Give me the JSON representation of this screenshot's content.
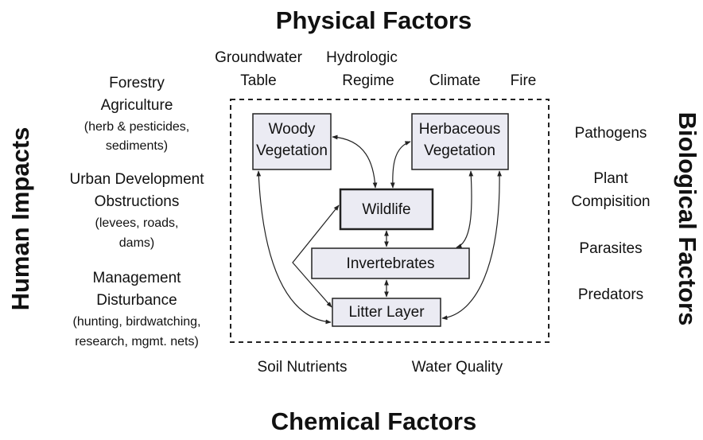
{
  "titles": {
    "top": "Physical Factors",
    "bottom": "Chemical Factors",
    "left": "Human Impacts",
    "right": "Biological Factors"
  },
  "physical_factors": [
    [
      "Groundwater",
      "Table"
    ],
    [
      "Hydrologic",
      "Regime"
    ],
    [
      "Climate"
    ],
    [
      "Fire"
    ]
  ],
  "human_impacts": [
    [
      "Forestry",
      "Agriculture",
      "(herb & pesticides,",
      "sediments)"
    ],
    [
      "Urban Development",
      "Obstructions",
      "(levees, roads,",
      "dams)"
    ],
    [
      "Management",
      "Disturbance",
      "(hunting, birdwatching,",
      "research, mgmt. nets)"
    ]
  ],
  "biological_factors": [
    [
      "Pathogens"
    ],
    [
      "Plant",
      "Compisition"
    ],
    [
      "Parasites"
    ],
    [
      "Predators"
    ]
  ],
  "chemical_factors": [
    "Soil Nutrients",
    "Water Quality"
  ],
  "nodes": [
    {
      "label": [
        "Woody",
        "Vegetation"
      ]
    },
    {
      "label": [
        "Herbaceous",
        "Vegetation"
      ]
    },
    {
      "label": [
        "Wildlife"
      ]
    },
    {
      "label": [
        "Invertebrates"
      ]
    },
    {
      "label": [
        "Litter Layer"
      ]
    }
  ]
}
